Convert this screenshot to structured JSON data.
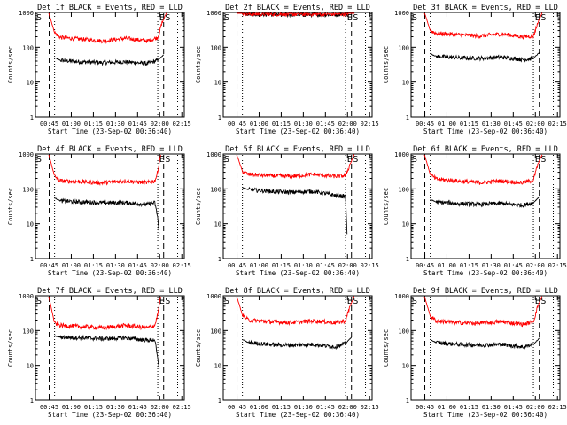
{
  "figure": {
    "xlabel": "Start Time (23-Sep-02 00:36:40)",
    "ylabel": "Counts/sec",
    "x_tick_labels": [
      "00:45",
      "01:00",
      "01:15",
      "01:30",
      "01:45",
      "02:00",
      "02:15"
    ],
    "y_tick_labels": [
      "1",
      "10",
      "100",
      "1000"
    ],
    "colors": {
      "events": "#000000",
      "lld": "#ff0000"
    }
  },
  "chart_data": [
    {
      "type": "line",
      "title": "Det 1f BLACK = Events, RED = LLD",
      "xlabel": "Start Time (23-Sep-02 00:36:40)",
      "ylabel": "Counts/sec",
      "x_ticks": [
        "00:45",
        "01:00",
        "01:15",
        "01:30",
        "01:45",
        "02:00",
        "02:15"
      ],
      "xlim_minutes_after_start": [
        -1,
        100
      ],
      "ylim": [
        1,
        1000
      ],
      "y_scale": "log",
      "markers": {
        "start": "S",
        "end": "E",
        "end2": "S"
      },
      "series": [
        {
          "name": "Events",
          "color": "#000000",
          "x": [
            12,
            16,
            30,
            45,
            60,
            75,
            82,
            86
          ],
          "y": [
            50,
            42,
            38,
            36,
            38,
            34,
            42,
            60
          ]
        },
        {
          "name": "LLD",
          "color": "#ff0000",
          "x": [
            8,
            12,
            16,
            30,
            45,
            60,
            75,
            82,
            85,
            88
          ],
          "y": [
            1000,
            260,
            190,
            170,
            150,
            180,
            150,
            190,
            500,
            1000
          ]
        }
      ]
    },
    {
      "type": "line",
      "title": "Det 2f BLACK = Events, RED = LLD",
      "xlabel": "Start Time (23-Sep-02 00:36:40)",
      "ylabel": "Counts/sec",
      "x_ticks": [
        "00:45",
        "01:00",
        "01:15",
        "01:30",
        "01:45",
        "02:00",
        "02:15"
      ],
      "xlim_minutes_after_start": [
        -1,
        100
      ],
      "ylim": [
        1,
        1000
      ],
      "y_scale": "log",
      "markers": {
        "start": "S",
        "end": "E",
        "end2": "S"
      },
      "series": [
        {
          "name": "Events",
          "color": "#000000",
          "x": [
            10,
            12,
            16,
            30,
            45,
            60,
            75,
            82,
            85,
            88
          ],
          "y": [
            1000,
            950,
            880,
            870,
            860,
            860,
            870,
            900,
            1000,
            1000
          ]
        },
        {
          "name": "LLD",
          "color": "#ff0000",
          "x": [
            8,
            12,
            16,
            30,
            45,
            60,
            75,
            82,
            85,
            88
          ],
          "y": [
            1000,
            950,
            900,
            900,
            890,
            890,
            900,
            920,
            1000,
            1000
          ]
        }
      ]
    },
    {
      "type": "line",
      "title": "Det 3f BLACK = Events, RED = LLD",
      "xlabel": "Start Time (23-Sep-02 00:36:40)",
      "ylabel": "Counts/sec",
      "x_ticks": [
        "00:45",
        "01:00",
        "01:15",
        "01:30",
        "01:45",
        "02:00",
        "02:15"
      ],
      "xlim_minutes_after_start": [
        -1,
        100
      ],
      "ylim": [
        1,
        1000
      ],
      "y_scale": "log",
      "markers": {
        "start": "S",
        "end": "E",
        "end2": "S"
      },
      "series": [
        {
          "name": "Events",
          "color": "#000000",
          "x": [
            12,
            16,
            30,
            45,
            60,
            75,
            82,
            86
          ],
          "y": [
            65,
            55,
            50,
            48,
            52,
            44,
            48,
            70
          ]
        },
        {
          "name": "LLD",
          "color": "#ff0000",
          "x": [
            8,
            12,
            16,
            30,
            45,
            60,
            75,
            82,
            85,
            88
          ],
          "y": [
            1000,
            300,
            250,
            230,
            210,
            240,
            200,
            210,
            500,
            1000
          ]
        }
      ]
    },
    {
      "type": "line",
      "title": "Det 4f BLACK = Events, RED = LLD",
      "xlabel": "Start Time (23-Sep-02 00:36:40)",
      "ylabel": "Counts/sec",
      "x_ticks": [
        "00:45",
        "01:00",
        "01:15",
        "01:30",
        "01:45",
        "02:00",
        "02:15"
      ],
      "xlim_minutes_after_start": [
        -1,
        100
      ],
      "ylim": [
        1,
        1000
      ],
      "y_scale": "log",
      "markers": {
        "start": "S",
        "end": "E",
        "end2": "S"
      },
      "series": [
        {
          "name": "Events",
          "color": "#000000",
          "x": [
            12,
            16,
            30,
            45,
            60,
            75,
            80,
            82,
            83
          ],
          "y": [
            55,
            45,
            42,
            40,
            40,
            36,
            40,
            15,
            5
          ]
        },
        {
          "name": "LLD",
          "color": "#ff0000",
          "x": [
            8,
            12,
            16,
            30,
            45,
            60,
            75,
            80,
            82,
            84
          ],
          "y": [
            1000,
            230,
            170,
            160,
            150,
            170,
            150,
            170,
            300,
            1000
          ]
        }
      ]
    },
    {
      "type": "line",
      "title": "Det 5f BLACK = Events, RED = LLD",
      "xlabel": "Start Time (23-Sep-02 00:36:40)",
      "ylabel": "Counts/sec",
      "x_ticks": [
        "00:45",
        "01:00",
        "01:15",
        "01:30",
        "01:45",
        "02:00",
        "02:15"
      ],
      "xlim_minutes_after_start": [
        -1,
        100
      ],
      "ylim": [
        1,
        1000
      ],
      "y_scale": "log",
      "markers": {
        "start": "S",
        "end": "E",
        "end2": "S"
      },
      "series": [
        {
          "name": "Events",
          "color": "#000000",
          "x": [
            12,
            16,
            30,
            45,
            60,
            75,
            82,
            83
          ],
          "y": [
            110,
            95,
            85,
            80,
            85,
            65,
            60,
            5
          ]
        },
        {
          "name": "LLD",
          "color": "#ff0000",
          "x": [
            8,
            12,
            16,
            30,
            45,
            60,
            75,
            82,
            85,
            88
          ],
          "y": [
            1000,
            320,
            260,
            240,
            230,
            260,
            230,
            240,
            500,
            1000
          ]
        }
      ]
    },
    {
      "type": "line",
      "title": "Det 6f BLACK = Events, RED = LLD",
      "xlabel": "Start Time (23-Sep-02 00:36:40)",
      "ylabel": "Counts/sec",
      "x_ticks": [
        "00:45",
        "01:00",
        "01:15",
        "01:30",
        "01:45",
        "02:00",
        "02:15"
      ],
      "xlim_minutes_after_start": [
        -1,
        100
      ],
      "ylim": [
        1,
        1000
      ],
      "y_scale": "log",
      "markers": {
        "start": "S",
        "end": "E",
        "end2": "S"
      },
      "series": [
        {
          "name": "Events",
          "color": "#000000",
          "x": [
            12,
            16,
            30,
            45,
            60,
            75,
            82,
            86
          ],
          "y": [
            50,
            42,
            38,
            36,
            38,
            34,
            40,
            60
          ]
        },
        {
          "name": "LLD",
          "color": "#ff0000",
          "x": [
            8,
            12,
            16,
            30,
            45,
            60,
            75,
            82,
            85,
            88
          ],
          "y": [
            1000,
            260,
            190,
            170,
            150,
            170,
            150,
            180,
            500,
            1000
          ]
        }
      ]
    },
    {
      "type": "line",
      "title": "Det 7f BLACK = Events, RED = LLD",
      "xlabel": "Start Time (23-Sep-02 00:36:40)",
      "ylabel": "Counts/sec",
      "x_ticks": [
        "00:45",
        "01:00",
        "01:15",
        "01:30",
        "01:45",
        "02:00",
        "02:15"
      ],
      "xlim_minutes_after_start": [
        -1,
        100
      ],
      "ylim": [
        1,
        1000
      ],
      "y_scale": "log",
      "markers": {
        "start": "S",
        "end": "E",
        "end2": "S"
      },
      "series": [
        {
          "name": "Events",
          "color": "#000000",
          "x": [
            12,
            16,
            30,
            45,
            60,
            75,
            80,
            82,
            83
          ],
          "y": [
            70,
            65,
            62,
            58,
            62,
            52,
            55,
            15,
            8
          ]
        },
        {
          "name": "LLD",
          "color": "#ff0000",
          "x": [
            8,
            12,
            16,
            30,
            45,
            60,
            75,
            80,
            82,
            84
          ],
          "y": [
            1000,
            160,
            140,
            130,
            120,
            140,
            120,
            140,
            300,
            1000
          ]
        }
      ]
    },
    {
      "type": "line",
      "title": "Det 8f BLACK = Events, RED = LLD",
      "xlabel": "Start Time (23-Sep-02 00:36:40)",
      "ylabel": "Counts/sec",
      "x_ticks": [
        "00:45",
        "01:00",
        "01:15",
        "01:30",
        "01:45",
        "02:00",
        "02:15"
      ],
      "xlim_minutes_after_start": [
        -1,
        100
      ],
      "ylim": [
        1,
        1000
      ],
      "y_scale": "log",
      "markers": {
        "start": "S",
        "end": "E",
        "end2": "S"
      },
      "series": [
        {
          "name": "Events",
          "color": "#000000",
          "x": [
            12,
            16,
            30,
            45,
            60,
            75,
            82,
            86
          ],
          "y": [
            55,
            45,
            40,
            38,
            40,
            34,
            42,
            65
          ]
        },
        {
          "name": "LLD",
          "color": "#ff0000",
          "x": [
            8,
            12,
            16,
            30,
            45,
            60,
            75,
            82,
            85,
            88
          ],
          "y": [
            1000,
            280,
            200,
            180,
            170,
            190,
            170,
            190,
            500,
            1000
          ]
        }
      ]
    },
    {
      "type": "line",
      "title": "Det 9f BLACK = Events, RED = LLD",
      "xlabel": "Start Time (23-Sep-02 00:36:40)",
      "ylabel": "Counts/sec",
      "x_ticks": [
        "00:45",
        "01:00",
        "01:15",
        "01:30",
        "01:45",
        "02:00",
        "02:15"
      ],
      "xlim_minutes_after_start": [
        -1,
        100
      ],
      "ylim": [
        1,
        1000
      ],
      "y_scale": "log",
      "markers": {
        "start": "S",
        "end": "E",
        "end2": "S"
      },
      "series": [
        {
          "name": "Events",
          "color": "#000000",
          "x": [
            12,
            16,
            30,
            45,
            60,
            75,
            82,
            86
          ],
          "y": [
            55,
            45,
            40,
            38,
            40,
            34,
            40,
            60
          ]
        },
        {
          "name": "LLD",
          "color": "#ff0000",
          "x": [
            8,
            12,
            16,
            30,
            45,
            60,
            75,
            82,
            85,
            88
          ],
          "y": [
            1000,
            260,
            190,
            170,
            160,
            180,
            150,
            180,
            500,
            1000
          ]
        }
      ]
    }
  ]
}
